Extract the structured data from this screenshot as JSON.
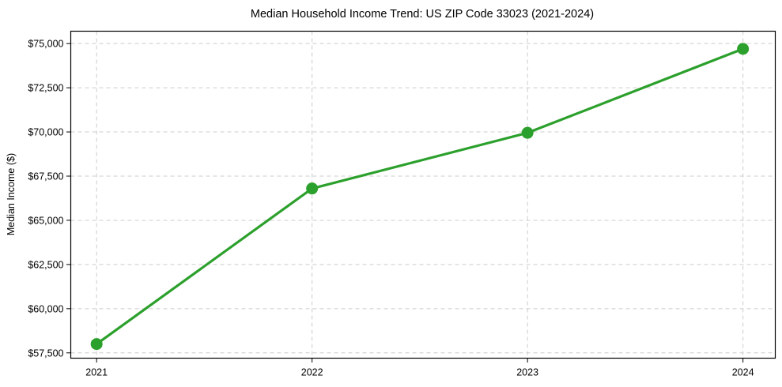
{
  "chart_data": {
    "type": "line",
    "title": "Median Household Income Trend: US ZIP Code 33023 (2021-2024)",
    "xlabel": "",
    "ylabel": "Median Income ($)",
    "x": [
      2021,
      2022,
      2023,
      2024
    ],
    "values": [
      58000,
      66800,
      69950,
      74700
    ],
    "xtick_labels": [
      "2021",
      "2022",
      "2023",
      "2024"
    ],
    "yticks": [
      57500,
      60000,
      62500,
      65000,
      67500,
      70000,
      72500,
      75000
    ],
    "ytick_labels": [
      "$57,500",
      "$60,000",
      "$62,500",
      "$65,000",
      "$67,500",
      "$70,000",
      "$72,500",
      "$75,000"
    ],
    "xlim": [
      2020.88,
      2024.15
    ],
    "ylim": [
      57200,
      75700
    ],
    "grid": true,
    "grid_style": "dashed",
    "legend": "none",
    "marker": "circle",
    "colors": {
      "line": "#2ca02c",
      "marker": "#2ca02c",
      "grid": "#cccccc",
      "spine": "#000000",
      "text": "#000000",
      "background": "#ffffff"
    }
  }
}
